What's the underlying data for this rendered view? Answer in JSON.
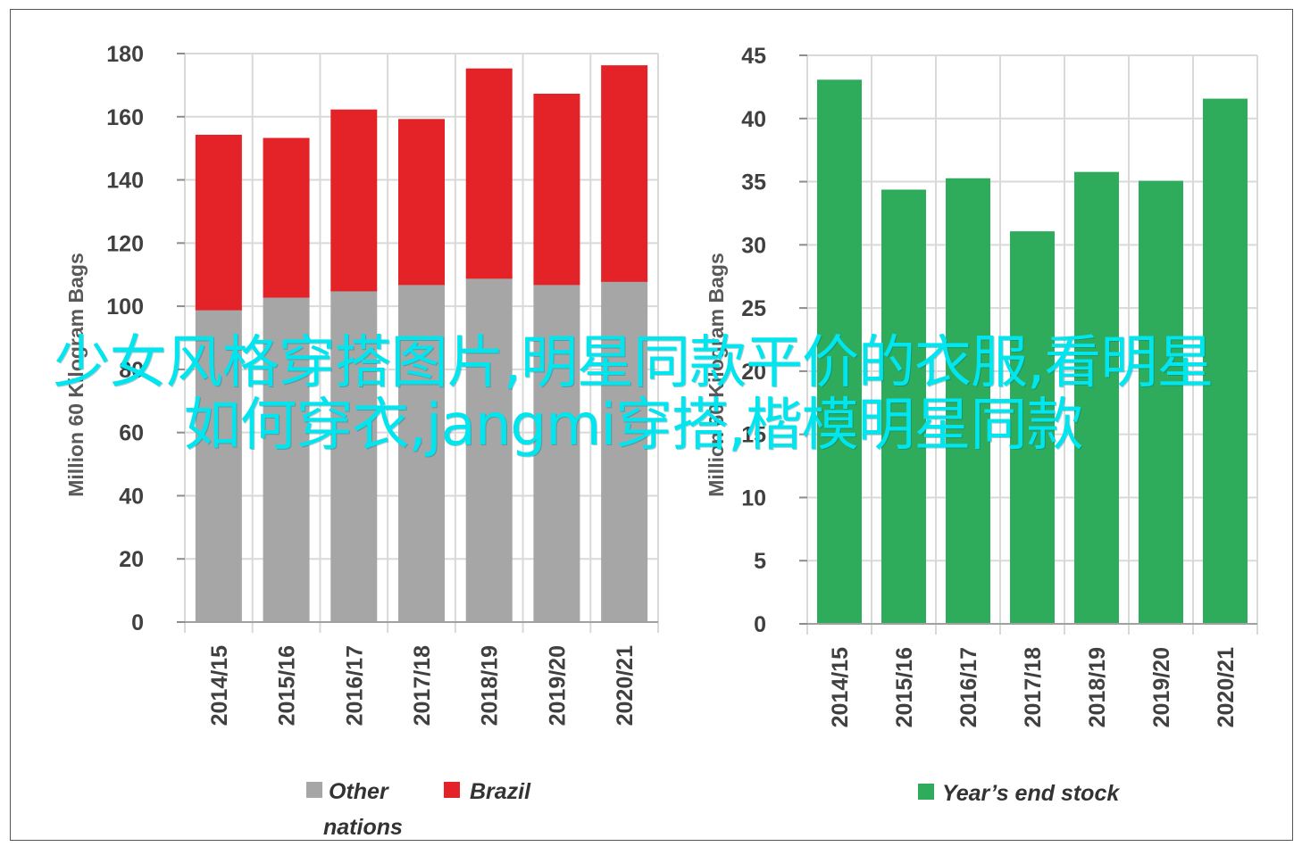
{
  "caption": "少女风格穿搭图片,明星同款平价的衣服,看明星如何穿衣,jangmi穿搭,楷模明星同款",
  "chart_data": [
    {
      "type": "bar",
      "stacked": true,
      "categories": [
        "2014/15",
        "2015/16",
        "2016/17",
        "2017/18",
        "2018/19",
        "2019/20",
        "2020/21"
      ],
      "series": [
        {
          "name": "Other nations",
          "color": "#a6a6a6",
          "values": [
            99,
            103,
            105,
            107,
            109,
            107,
            108
          ]
        },
        {
          "name": "Brazil",
          "color": "#e32327",
          "values": [
            55,
            50,
            57,
            52,
            66,
            60,
            68
          ]
        }
      ],
      "legend_labels": [
        "Other",
        "nations",
        "Brazil"
      ],
      "ylabel": "Million 60 Kilogram Bags",
      "ylim": [
        0,
        180
      ],
      "yticks": [
        "0",
        "20",
        "40",
        "60",
        "80",
        "100",
        "120",
        "140",
        "160",
        "180"
      ],
      "grid": true,
      "legend": "bottom"
    },
    {
      "type": "bar",
      "categories": [
        "2014/15",
        "2015/16",
        "2016/17",
        "2017/18",
        "2018/19",
        "2019/20",
        "2020/21"
      ],
      "series": [
        {
          "name": "Year’s end stock",
          "color": "#2eab5b",
          "values": [
            43,
            34.3,
            35.2,
            31,
            35.7,
            35,
            41.5
          ]
        }
      ],
      "ylabel": "Million 60 Kilogram Bags",
      "ylim": [
        0,
        45
      ],
      "yticks": [
        "0",
        "5",
        "10",
        "15",
        "20",
        "25",
        "30",
        "35",
        "40",
        "45"
      ],
      "grid": true,
      "legend": "bottom"
    }
  ]
}
